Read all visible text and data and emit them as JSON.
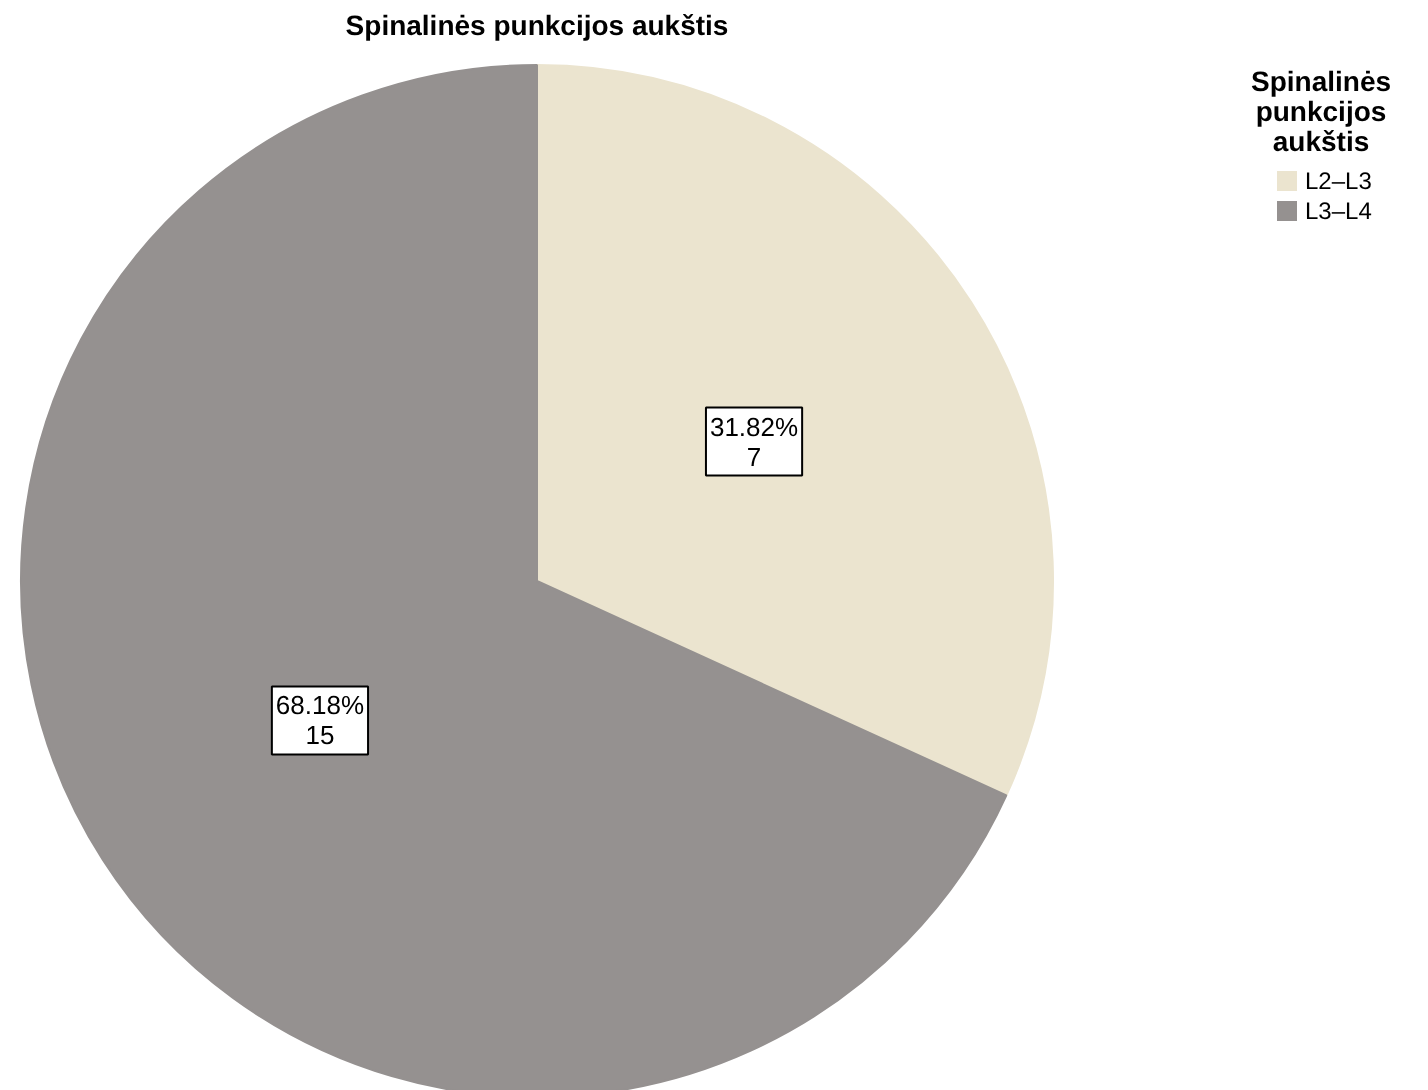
{
  "chart_data": {
    "type": "pie",
    "title": "Spinalinės punkcijos aukštis",
    "legend_title": "Spinalinės punkcijos aukštis",
    "categories": [
      "L2–L3",
      "L3–L4"
    ],
    "values": [
      7,
      15
    ],
    "value_labels": [
      "31.82%\n7",
      "68.18%\n15"
    ],
    "colors": [
      "#ebe4cf",
      "#959190"
    ],
    "legend": "top right"
  }
}
